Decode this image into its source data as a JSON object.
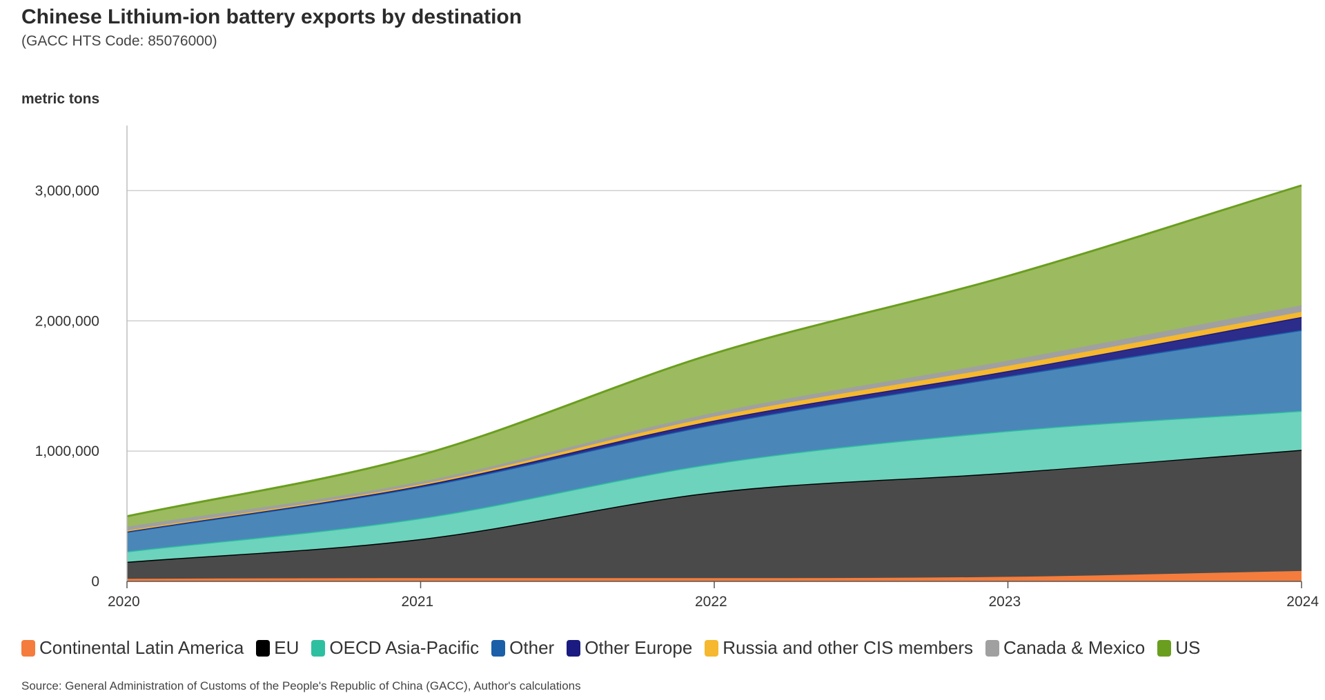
{
  "title": "Chinese Lithium-ion battery exports by destination",
  "subtitle": "(GACC HTS Code: 85076000)",
  "units": "metric tons",
  "source": "Source: General Administration of Customs of the People's Republic of China (GACC), Author's calculations",
  "chart_data": {
    "type": "area",
    "stacked": true,
    "x": [
      2020,
      2021,
      2022,
      2023,
      2024
    ],
    "ylim": [
      0,
      3500000
    ],
    "yticks": [
      0,
      1000000,
      2000000,
      3000000
    ],
    "ytick_labels": [
      "0",
      "1,000,000",
      "2,000,000",
      "3,000,000"
    ],
    "xtick_labels": [
      "2020",
      "2021",
      "2022",
      "2023",
      "2024"
    ],
    "grid": true,
    "legend_position": "bottom",
    "series": [
      {
        "name": "Continental Latin America",
        "color": "#f47c3c",
        "fill": "#f47c3c",
        "values": [
          20000,
          25000,
          25000,
          35000,
          80000
        ]
      },
      {
        "name": "EU",
        "color": "#000000",
        "fill": "#4a4a4a",
        "values": [
          130000,
          300000,
          660000,
          800000,
          930000
        ]
      },
      {
        "name": "OECD Asia-Pacific",
        "color": "#2ebfa0",
        "fill": "#6dd3bd",
        "values": [
          80000,
          160000,
          220000,
          320000,
          300000
        ]
      },
      {
        "name": "Other",
        "color": "#1a5fa8",
        "fill": "#4a87b8",
        "values": [
          150000,
          240000,
          300000,
          420000,
          620000
        ]
      },
      {
        "name": "Other Europe",
        "color": "#1a1a80",
        "fill": "#2c2c8a",
        "values": [
          5000,
          10000,
          30000,
          40000,
          100000
        ]
      },
      {
        "name": "Russia and other CIS members",
        "color": "#f5b82e",
        "fill": "#f5b82e",
        "values": [
          5000,
          10000,
          30000,
          40000,
          40000
        ]
      },
      {
        "name": "Canada & Mexico",
        "color": "#a0a0a0",
        "fill": "#a0a0a0",
        "values": [
          30000,
          20000,
          30000,
          40000,
          50000
        ]
      },
      {
        "name": "US",
        "color": "#6a9e1f",
        "fill": "#9cba5f",
        "values": [
          80000,
          205000,
          455000,
          650000,
          920000
        ]
      }
    ]
  }
}
